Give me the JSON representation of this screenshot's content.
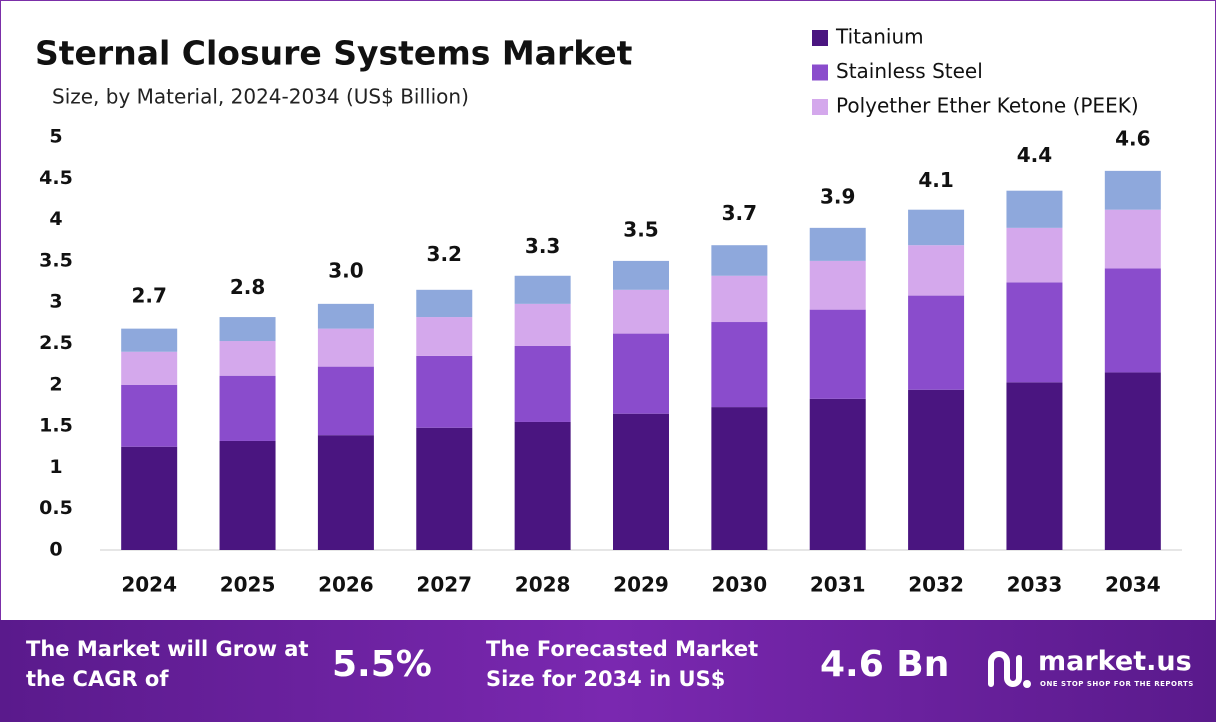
{
  "chart_data": {
    "type": "stacked_bar",
    "title": "Sternal Closure Systems Market",
    "subtitle": "Size, by Material, 2024-2034 (US$ Billion)",
    "categories": [
      "2024",
      "2025",
      "2026",
      "2027",
      "2028",
      "2029",
      "2030",
      "2031",
      "2032",
      "2033",
      "2034"
    ],
    "series": [
      {
        "name": "Titanium",
        "color": "#4a1580",
        "values": [
          1.25,
          1.32,
          1.39,
          1.48,
          1.55,
          1.65,
          1.73,
          1.83,
          1.94,
          2.03,
          2.15
        ]
      },
      {
        "name": "Stainless Steel",
        "color": "#8a4ccc",
        "values": [
          0.75,
          0.79,
          0.83,
          0.87,
          0.92,
          0.97,
          1.03,
          1.08,
          1.14,
          1.21,
          1.26
        ]
      },
      {
        "name": "Polyether Ether Ketone (PEEK)",
        "color": "#d4a8ec",
        "values": [
          0.4,
          0.42,
          0.46,
          0.47,
          0.51,
          0.53,
          0.56,
          0.59,
          0.61,
          0.66,
          0.71
        ]
      },
      {
        "color": "#8ea8dc",
        "values": [
          0.28,
          0.29,
          0.3,
          0.33,
          0.34,
          0.35,
          0.37,
          0.4,
          0.43,
          0.45,
          0.47
        ]
      }
    ],
    "totals": [
      2.7,
      2.8,
      3.0,
      3.2,
      3.3,
      3.5,
      3.7,
      3.9,
      4.1,
      4.4,
      4.6
    ],
    "totals_labels": [
      "2.7",
      "2.8",
      "3.0",
      "3.2",
      "3.3",
      "3.5",
      "3.7",
      "3.9",
      "4.1",
      "4.4",
      "4.6"
    ],
    "ylim": [
      0,
      5
    ],
    "yticks": [
      0,
      0.5,
      1,
      1.5,
      2,
      2.5,
      3,
      3.5,
      4,
      4.5,
      5
    ],
    "grid": false
  },
  "footer": {
    "cagr_text": "The Market will Grow at the CAGR of",
    "cagr_value": "5.5%",
    "forecast_text": "The Forecasted Market Size for 2034 in US$",
    "forecast_value": "4.6 Bn",
    "brand": "market.us",
    "tagline": "ONE STOP SHOP FOR THE REPORTS"
  }
}
